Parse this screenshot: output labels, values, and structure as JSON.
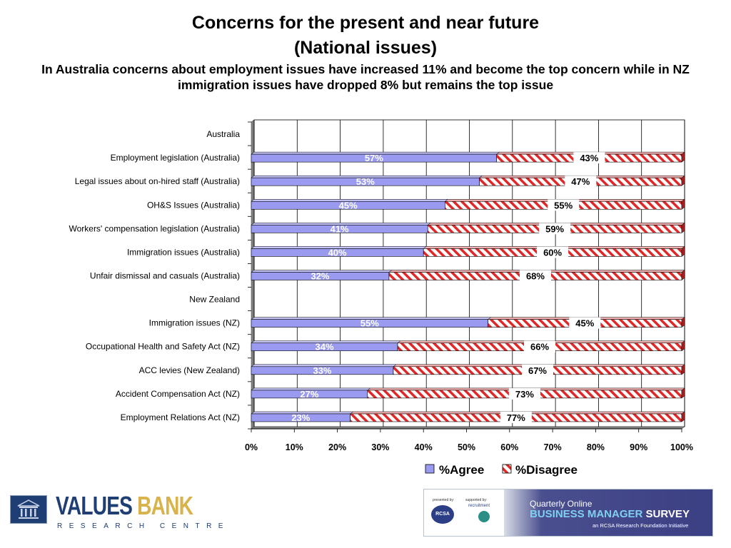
{
  "header": {
    "title_line1": "Concerns for the present and near future",
    "title_line2": "(National issues)",
    "subtitle": "In Australia concerns about employment issues have increased 11% and become the top concern while in NZ immigration issues have dropped 8% but remains the top issue"
  },
  "chart_data": {
    "type": "bar",
    "orientation": "horizontal",
    "stacked": true,
    "percent": true,
    "title": "Concerns for the present and near future (National issues)",
    "categories": [
      "Australia",
      "Employment legislation (Australia)",
      "Legal issues about on-hired staff (Australia)",
      "OH&S Issues (Australia)",
      "Workers' compensation legislation (Australia)",
      "Immigration issues (Australia)",
      "Unfair dismissal and casuals (Australia)",
      "New Zealand",
      "Immigration issues (NZ)",
      "Occupational Health and Safety Act (NZ)",
      "ACC levies (New Zealand)",
      "Accident Compensation Act (NZ)",
      "Employment Relations Act (NZ)"
    ],
    "series": [
      {
        "name": "%Agree",
        "color": "#9a9af0",
        "values": [
          null,
          57,
          53,
          45,
          41,
          40,
          32,
          null,
          55,
          34,
          33,
          27,
          23
        ]
      },
      {
        "name": "%Disagree",
        "color": "#e03030",
        "values": [
          null,
          43,
          47,
          55,
          59,
          60,
          68,
          null,
          45,
          66,
          67,
          73,
          77
        ]
      }
    ],
    "data_labels": {
      "agree": [
        null,
        "57%",
        "53%",
        "45%",
        "41%",
        "40%",
        "32%",
        null,
        "55%",
        "34%",
        "33%",
        "27%",
        "23%"
      ],
      "disagree": [
        null,
        "43%",
        "47%",
        "55%",
        "59%",
        "60%",
        "68%",
        null,
        "45%",
        "66%",
        "67%",
        "73%",
        "77%"
      ]
    },
    "xlim": [
      0,
      100
    ],
    "x_ticks": [
      "0%",
      "10%",
      "20%",
      "30%",
      "40%",
      "50%",
      "60%",
      "70%",
      "80%",
      "90%",
      "100%"
    ],
    "grid": true,
    "legend_position": "bottom",
    "legend": [
      "%Agree",
      "%Disagree"
    ]
  },
  "logos": {
    "values_bank": {
      "name_part1": "VALUES",
      "name_part2": "BANK",
      "subtitle": "RESEARCH CENTRE"
    },
    "survey_banner": {
      "presented_by": "presented by:",
      "supported_by": "supported by:",
      "rcsa": "RCSA",
      "recruitment": "recruitment",
      "line1": "Quarterly Online",
      "line2_part1": "BUSINESS MANAGER",
      "line2_part2": "SURVEY",
      "line3": "an RCSA Research Foundation Initiative"
    }
  }
}
